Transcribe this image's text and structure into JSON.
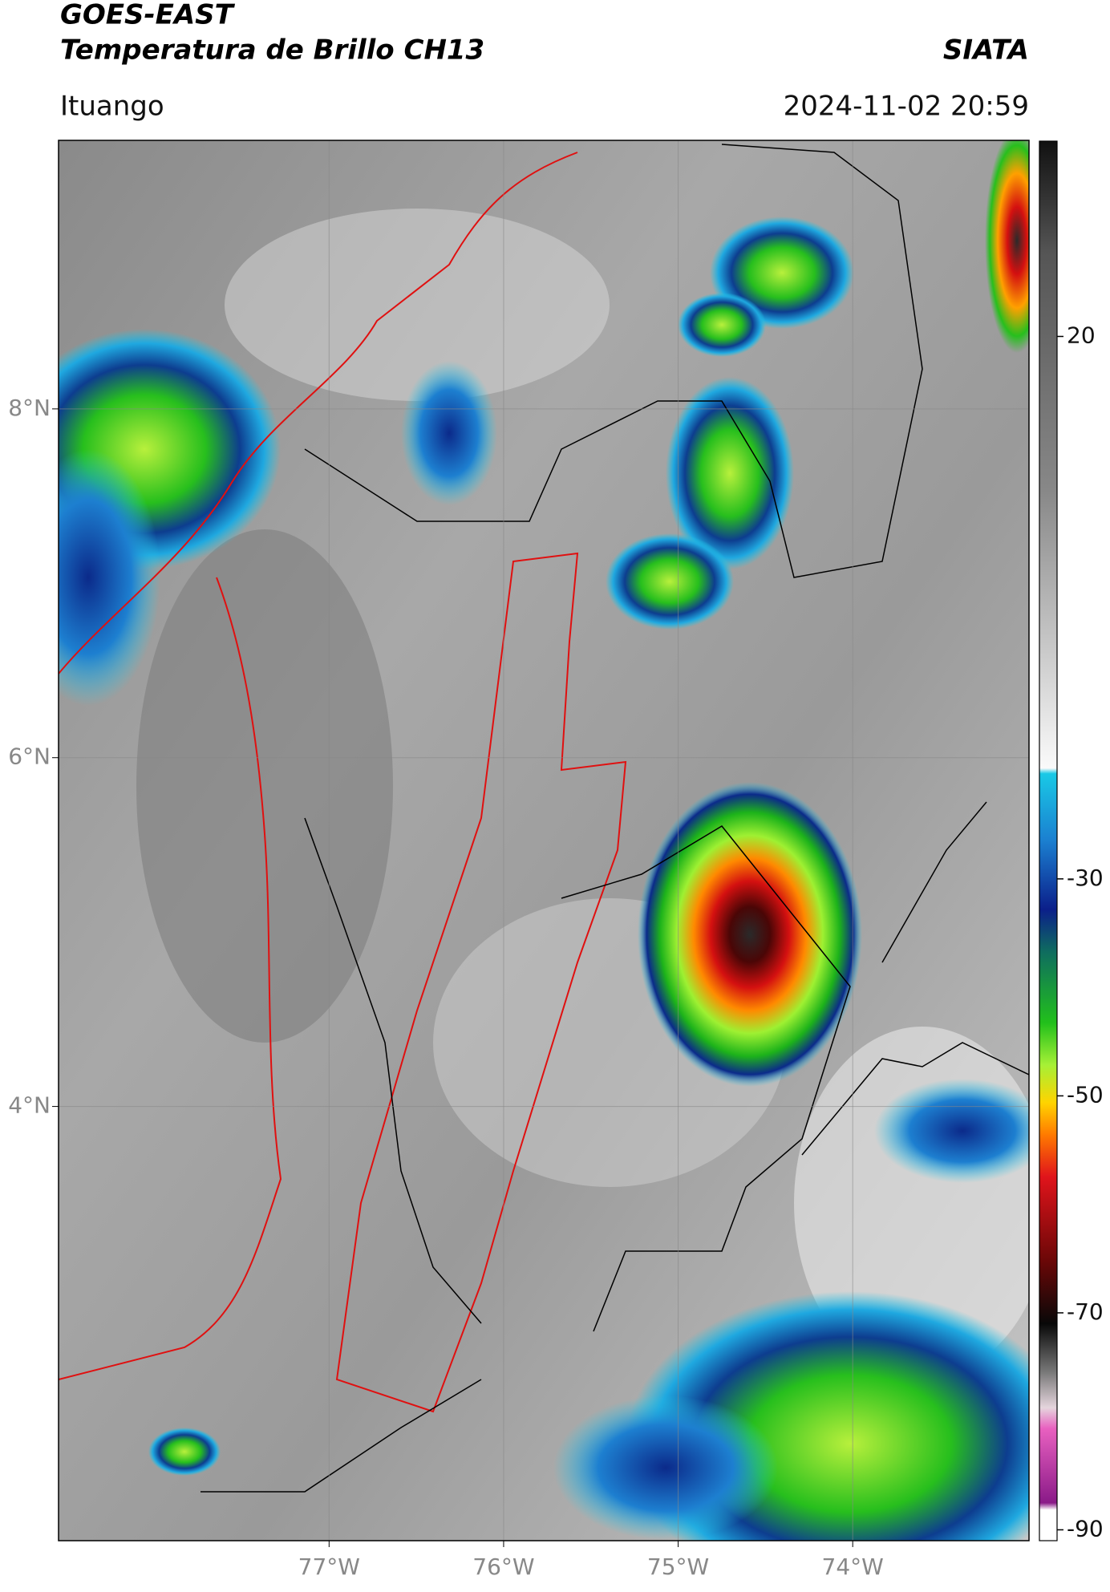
{
  "header": {
    "title": "GOES-EAST",
    "subtitle": "Temperatura de Brillo CH13",
    "brand": "SIATA",
    "location": "Ituango",
    "datetime": "2024-11-02 20:59"
  },
  "map": {
    "xlim": [
      -78.55,
      -72.99
    ],
    "ylim": [
      1.51,
      9.54
    ],
    "xticks": [
      {
        "value": -77,
        "label": "77°W"
      },
      {
        "value": -76,
        "label": "76°W"
      },
      {
        "value": -75,
        "label": "75°W"
      },
      {
        "value": -74,
        "label": "74°W"
      }
    ],
    "yticks": [
      {
        "value": 8,
        "label": "8°N"
      },
      {
        "value": 6,
        "label": "6°N"
      },
      {
        "value": 4,
        "label": "4°N"
      }
    ],
    "grid": true
  },
  "colorbar": {
    "lim": [
      -91,
      38
    ],
    "ticks": [
      20,
      -30,
      -50,
      -70,
      -90
    ]
  }
}
